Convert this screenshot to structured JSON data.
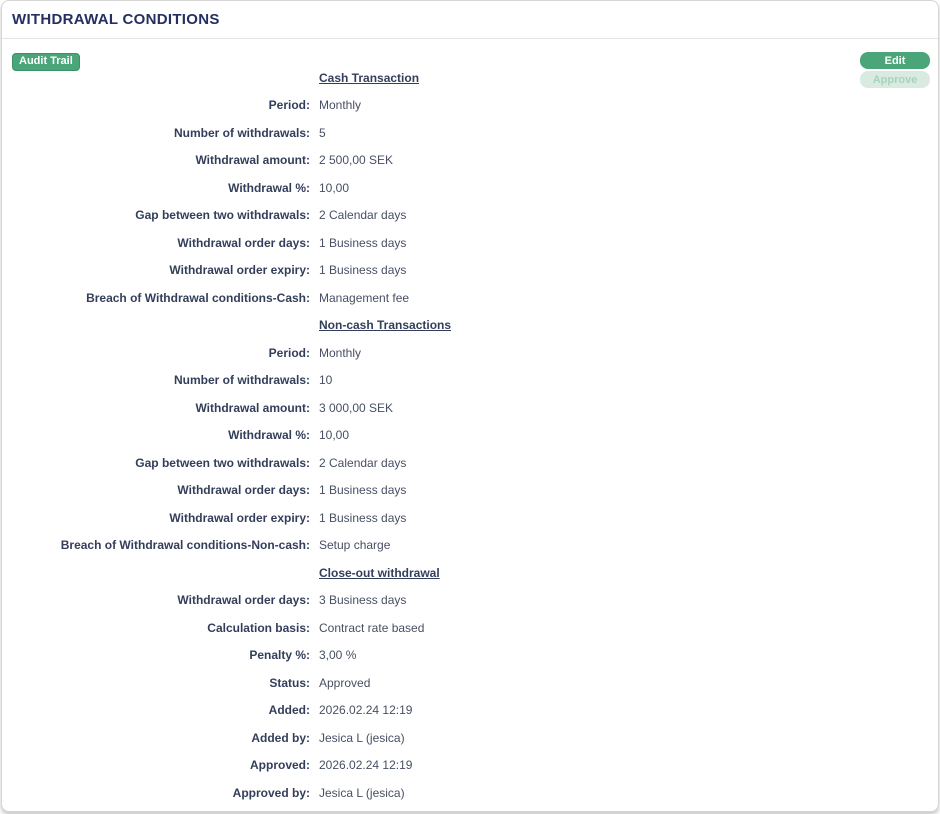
{
  "panel": {
    "title": "WITHDRAWAL CONDITIONS"
  },
  "toolbar": {
    "audit_trail_label": "Audit Trail",
    "edit_label": "Edit",
    "approve_label": "Approve",
    "approve_disabled": true
  },
  "colors": {
    "title_navy": "#252f60",
    "label_navy": "#333e5a",
    "value_gray": "#474f63",
    "accent_green": "#4aa578",
    "accent_green_border": "#3c9168",
    "disabled_green_bg": "#d9ebe1",
    "disabled_green_text": "#a9d2bc",
    "panel_border": "#d6d6d6",
    "divider": "#e4e4e8"
  },
  "sections": [
    {
      "heading": "Cash Transaction",
      "rows": [
        {
          "label": "Period:",
          "value": "Monthly"
        },
        {
          "label": "Number of withdrawals:",
          "value": "5"
        },
        {
          "label": "Withdrawal amount:",
          "value": "2 500,00 SEK"
        },
        {
          "label": "Withdrawal %:",
          "value": "10,00"
        },
        {
          "label": "Gap between two withdrawals:",
          "value": "2 Calendar days"
        },
        {
          "label": "Withdrawal order days:",
          "value": "1 Business days"
        },
        {
          "label": "Withdrawal order expiry:",
          "value": "1 Business days"
        },
        {
          "label": "Breach of Withdrawal conditions-Cash:",
          "value": "Management fee"
        }
      ]
    },
    {
      "heading": "Non-cash Transactions",
      "rows": [
        {
          "label": "Period:",
          "value": "Monthly"
        },
        {
          "label": "Number of withdrawals:",
          "value": "10"
        },
        {
          "label": "Withdrawal amount:",
          "value": "3 000,00 SEK"
        },
        {
          "label": "Withdrawal %:",
          "value": "10,00"
        },
        {
          "label": "Gap between two withdrawals:",
          "value": "2 Calendar days"
        },
        {
          "label": "Withdrawal order days:",
          "value": "1 Business days"
        },
        {
          "label": "Withdrawal order expiry:",
          "value": "1 Business days"
        },
        {
          "label": "Breach of Withdrawal conditions-Non-cash:",
          "value": "Setup charge"
        }
      ]
    },
    {
      "heading": "Close-out withdrawal",
      "rows": [
        {
          "label": "Withdrawal order days:",
          "value": "3 Business days"
        },
        {
          "label": "Calculation basis:",
          "value": "Contract rate based"
        },
        {
          "label": "Penalty %:",
          "value": "3,00 %"
        },
        {
          "label": "Status:",
          "value": "Approved"
        },
        {
          "label": "Added:",
          "value": "2026.02.24 12:19"
        },
        {
          "label": "Added by:",
          "value": "Jesica L (jesica)"
        },
        {
          "label": "Approved:",
          "value": "2026.02.24 12:19"
        },
        {
          "label": "Approved by:",
          "value": "Jesica L (jesica)"
        }
      ]
    }
  ]
}
